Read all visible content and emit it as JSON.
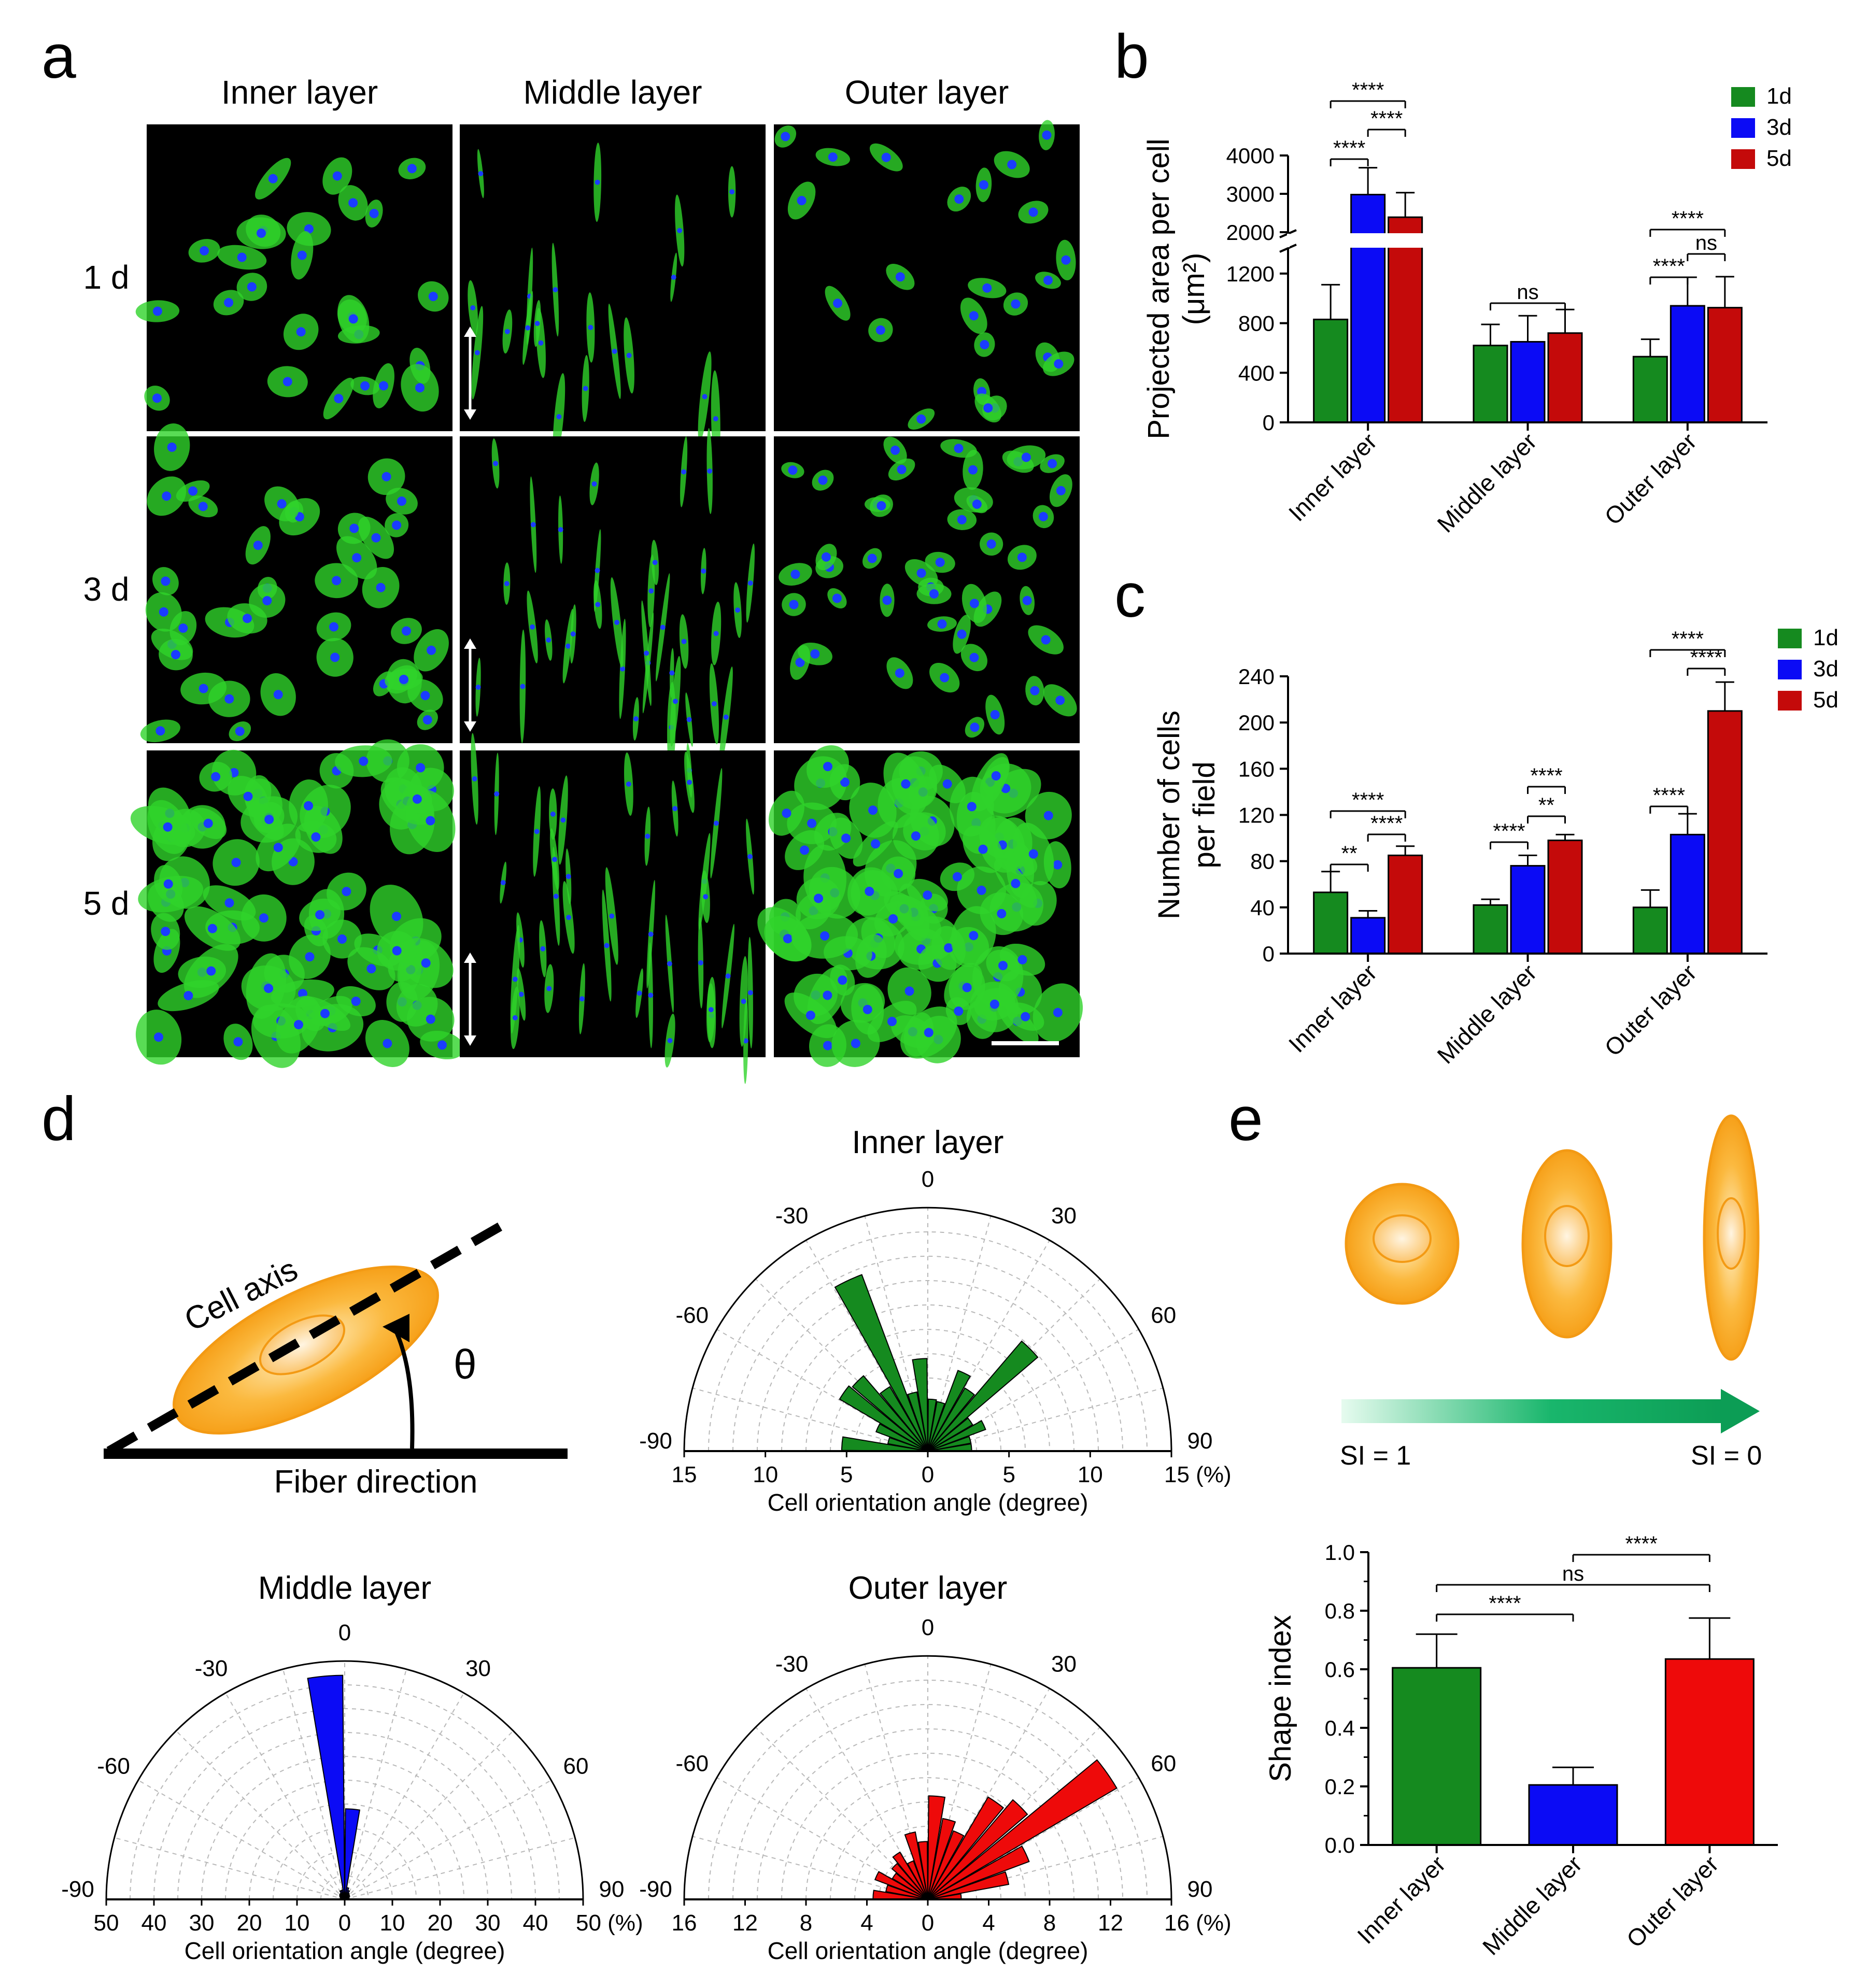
{
  "panel_labels": {
    "a": "a",
    "b": "b",
    "c": "c",
    "d": "d",
    "e": "e"
  },
  "micrographs": {
    "columns": [
      "Inner layer",
      "Middle layer",
      "Outer layer"
    ],
    "rows": [
      "1 d",
      "3 d",
      "5 d"
    ],
    "colors": {
      "actin": "#2fd32a",
      "nuclei": "#1a3cff",
      "background": "#000000"
    }
  },
  "schematic_d": {
    "cell_axis_label": "Cell axis",
    "fiber_label": "Fiber direction",
    "angle_symbol": "θ"
  },
  "schematic_e": {
    "si_left": "SI = 1",
    "si_right": "SI = 0"
  },
  "colors": {
    "d1": "#158a1f",
    "d3": "#0b0bf5",
    "d5": "#c40a0a",
    "inner": "#158a1f",
    "middle": "#0b0bf5",
    "outer": "#ee0a0a",
    "cell": "#f7a21a"
  },
  "chart_data": [
    {
      "id": "b",
      "type": "bar",
      "title": "",
      "ylabel_line1": "Projected area per cell",
      "ylabel_line2": "(μm²)",
      "categories": [
        "Inner layer",
        "Middle layer",
        "Outer layer"
      ],
      "legend": [
        "1d",
        "3d",
        "5d"
      ],
      "series": [
        {
          "name": "1d",
          "values": [
            830,
            620,
            530
          ],
          "errors": [
            280,
            170,
            140
          ]
        },
        {
          "name": "3d",
          "values": [
            2980,
            650,
            940
          ],
          "errors": [
            700,
            210,
            230
          ]
        },
        {
          "name": "5d",
          "values": [
            2390,
            720,
            925
          ],
          "errors": [
            640,
            190,
            250
          ]
        }
      ],
      "y_axis_lower": {
        "range": [
          0,
          1400
        ],
        "ticks": [
          "0",
          "400",
          "800",
          "1200"
        ]
      },
      "y_axis_upper": {
        "range": [
          2000,
          4000
        ],
        "ticks": [
          "2000",
          "3000",
          "4000"
        ]
      },
      "significance": [
        {
          "group": 0,
          "from": 0,
          "to": 2,
          "label": "****"
        },
        {
          "group": 0,
          "from": 1,
          "to": 2,
          "label": "****"
        },
        {
          "group": 0,
          "from": 0,
          "to": 1,
          "label": "****"
        },
        {
          "group": 1,
          "from": 0,
          "to": 2,
          "label": "ns"
        },
        {
          "group": 2,
          "from": 0,
          "to": 2,
          "label": "****"
        },
        {
          "group": 2,
          "from": 1,
          "to": 2,
          "label": "ns"
        },
        {
          "group": 2,
          "from": 0,
          "to": 1,
          "label": "****"
        }
      ]
    },
    {
      "id": "c",
      "type": "bar",
      "title": "",
      "ylabel_line1": "Number of cells",
      "ylabel_line2": "per field",
      "categories": [
        "Inner layer",
        "Middle layer",
        "Outer layer"
      ],
      "legend": [
        "1d",
        "3d",
        "5d"
      ],
      "series": [
        {
          "name": "1d",
          "values": [
            53,
            42,
            40
          ],
          "errors": [
            18,
            5,
            15
          ]
        },
        {
          "name": "3d",
          "values": [
            31,
            76,
            103
          ],
          "errors": [
            6,
            9,
            18
          ]
        },
        {
          "name": "5d",
          "values": [
            85,
            98,
            210
          ],
          "errors": [
            8,
            5,
            25
          ]
        }
      ],
      "ylim": [
        0,
        240
      ],
      "yticks": [
        "0",
        "40",
        "80",
        "120",
        "160",
        "200",
        "240"
      ],
      "significance": [
        {
          "group": 0,
          "from": 0,
          "to": 2,
          "label": "****"
        },
        {
          "group": 0,
          "from": 1,
          "to": 2,
          "label": "****"
        },
        {
          "group": 0,
          "from": 0,
          "to": 1,
          "label": "**"
        },
        {
          "group": 1,
          "from": 1,
          "to": 2,
          "label": "****"
        },
        {
          "group": 1,
          "from": 1,
          "to": 2,
          "label": "**"
        },
        {
          "group": 1,
          "from": 0,
          "to": 1,
          "label": "****"
        },
        {
          "group": 2,
          "from": 0,
          "to": 2,
          "label": "****"
        },
        {
          "group": 2,
          "from": 1,
          "to": 2,
          "label": "****"
        },
        {
          "group": 2,
          "from": 0,
          "to": 1,
          "label": "****"
        }
      ]
    },
    {
      "id": "d-inner",
      "type": "polar-rose",
      "title": "Inner layer",
      "xlabel": "Cell orientation angle (degree)",
      "rmax": 15,
      "r_ticks": [
        "15",
        "10",
        "5",
        "0",
        "5",
        "10",
        "15 (%)"
      ],
      "angle_ticks": [
        "-90",
        "-60",
        "-30",
        "0",
        "30",
        "60",
        "90"
      ],
      "angles": [
        -85,
        -75,
        -65,
        -55,
        -45,
        -35,
        -25,
        -15,
        -5,
        5,
        15,
        25,
        35,
        45,
        55,
        65,
        75,
        85
      ],
      "values": [
        5.3,
        2.5,
        3.4,
        6.3,
        6.1,
        4.6,
        11.6,
        3.7,
        5.7,
        3.2,
        3.1,
        5.3,
        4.5,
        8.9,
        3.2,
        3.8,
        2.7,
        2.7
      ]
    },
    {
      "id": "d-middle",
      "type": "polar-rose",
      "title": "Middle layer",
      "xlabel": "Cell orientation angle (degree)",
      "rmax": 50,
      "r_ticks": [
        "50",
        "40",
        "30",
        "20",
        "10",
        "0",
        "10",
        "20",
        "30",
        "40",
        "50 (%)"
      ],
      "angle_ticks": [
        "-90",
        "-60",
        "-30",
        "0",
        "30",
        "60",
        "90"
      ],
      "angles": [
        -85,
        -75,
        -65,
        -55,
        -45,
        -35,
        -25,
        -15,
        -5,
        5,
        15,
        25,
        35,
        45,
        55,
        65,
        75,
        85
      ],
      "values": [
        0.8,
        0.8,
        1,
        1.2,
        1.4,
        1.5,
        2,
        2,
        47,
        19,
        2.5,
        2,
        1.5,
        1.3,
        1.2,
        1,
        0.8,
        0.8
      ]
    },
    {
      "id": "d-outer",
      "type": "polar-rose",
      "title": "Outer layer",
      "xlabel": "Cell orientation angle (degree)",
      "rmax": 16,
      "r_ticks": [
        "16",
        "12",
        "8",
        "4",
        "0",
        "4",
        "8",
        "12",
        "16 (%)"
      ],
      "angle_ticks": [
        "-90",
        "-60",
        "-30",
        "0",
        "30",
        "60",
        "90"
      ],
      "angles": [
        -85,
        -75,
        -65,
        -55,
        -45,
        -35,
        -25,
        -15,
        -5,
        5,
        15,
        25,
        35,
        45,
        55,
        65,
        75,
        85
      ],
      "values": [
        3.6,
        2.8,
        3.7,
        2.7,
        3.1,
        3.6,
        2.7,
        4.5,
        3.8,
        6.8,
        5.4,
        4.8,
        7.8,
        8.6,
        14.4,
        7.1,
        5.4,
        2.2
      ]
    },
    {
      "id": "e",
      "type": "bar",
      "title": "",
      "ylabel": "Shape index",
      "categories": [
        "Inner layer",
        "Middle layer",
        "Outer layer"
      ],
      "values": [
        0.605,
        0.205,
        0.635
      ],
      "errors": [
        0.115,
        0.06,
        0.14
      ],
      "ylim": [
        0,
        1.0
      ],
      "yticks": [
        "0.0",
        "0.2",
        "0.4",
        "0.6",
        "0.8",
        "1.0"
      ],
      "significance": [
        {
          "from": 1,
          "to": 2,
          "label": "****"
        },
        {
          "from": 0,
          "to": 2,
          "label": "ns"
        },
        {
          "from": 0,
          "to": 1,
          "label": "****"
        }
      ]
    }
  ]
}
